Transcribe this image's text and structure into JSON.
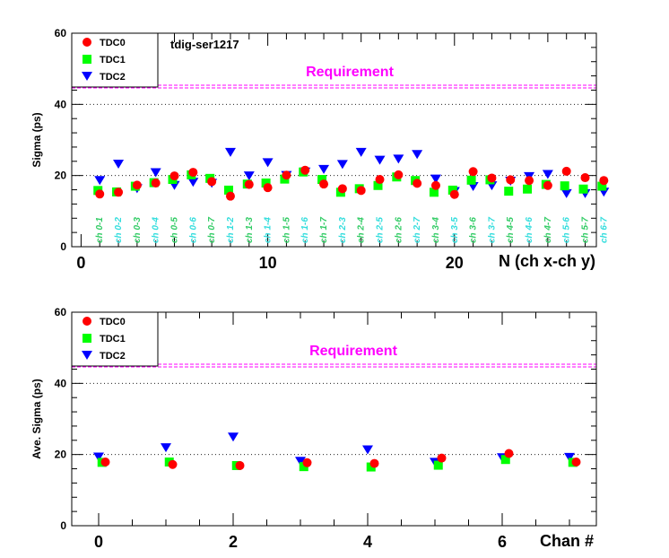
{
  "chart_data": [
    {
      "type": "scatter",
      "annotation": "tdig-ser1217",
      "requirement_label": "Requirement",
      "requirement_value": 45,
      "xlabel": "N (ch x-ch y)",
      "ylabel": "Sigma (ps)",
      "xlim": [
        -0.5,
        27.6
      ],
      "ylim": [
        0,
        60
      ],
      "x_ticks": [
        0,
        10,
        20
      ],
      "y_ticks": [
        0,
        20,
        40,
        60
      ],
      "legend_position": "top-left",
      "grid": "horizontal dotted",
      "x_labels": [
        "ch 0-1",
        "ch 0-2",
        "ch 0-3",
        "ch 0-4",
        "ch 0-5",
        "ch 0-6",
        "ch 0-7",
        "ch 1-2",
        "ch 1-3",
        "ch 1-4",
        "ch 1-5",
        "ch 1-6",
        "ch 1-7",
        "ch 2-3",
        "ch 2-4",
        "ch 2-5",
        "ch 2-6",
        "ch 2-7",
        "ch 3-4",
        "ch 3-5",
        "ch 3-6",
        "ch 3-7",
        "ch 4-5",
        "ch 4-6",
        "ch 4-7",
        "ch 5-6",
        "ch 5-7",
        "ch 6-7"
      ],
      "x": [
        1,
        2,
        3,
        4,
        5,
        6,
        7,
        8,
        9,
        10,
        11,
        12,
        13,
        14,
        15,
        16,
        17,
        18,
        19,
        20,
        21,
        22,
        23,
        24,
        25,
        26,
        27,
        28
      ],
      "series": [
        {
          "name": "TDC0",
          "color": "#ff0000",
          "marker": "circle",
          "values": [
            14.8,
            15.3,
            17.3,
            17.9,
            19.9,
            20.9,
            18.3,
            14.2,
            17.5,
            16.6,
            20.1,
            21.5,
            17.6,
            16.3,
            15.8,
            18.9,
            20.2,
            17.8,
            17.2,
            14.7,
            21.1,
            19.3,
            18.8,
            18.6,
            17.2,
            21.2,
            19.4,
            18.6
          ]
        },
        {
          "name": "TDC1",
          "color": "#00ff00",
          "marker": "square",
          "values": [
            15.8,
            15.4,
            17.0,
            18.0,
            18.9,
            20.2,
            19.2,
            15.9,
            17.6,
            17.9,
            19.0,
            21.0,
            18.9,
            15.3,
            16.3,
            17.2,
            19.6,
            18.6,
            15.3,
            15.9,
            18.7,
            18.8,
            15.6,
            16.2,
            17.5,
            17.1,
            16.2,
            17.0
          ]
        },
        {
          "name": "TDC2",
          "color": "#0000ff",
          "marker": "triangle-down",
          "values": [
            18.6,
            23.2,
            16.3,
            20.8,
            17.2,
            18.1,
            17.8,
            26.5,
            19.9,
            23.6,
            20.0,
            21.0,
            21.7,
            23.1,
            26.5,
            24.3,
            24.6,
            25.9,
            19.0,
            15.5,
            16.9,
            17.1,
            18.4,
            19.7,
            20.3,
            14.9,
            14.9,
            15.3
          ]
        }
      ]
    },
    {
      "type": "scatter",
      "requirement_label": "Requirement",
      "requirement_value": 45,
      "xlabel": "Chan #",
      "ylabel": "Ave. Sigma (ps)",
      "xlim": [
        -0.4,
        7.4
      ],
      "ylim": [
        0,
        60
      ],
      "x_ticks": [
        0,
        2,
        4,
        6
      ],
      "y_ticks": [
        0,
        20,
        40,
        60
      ],
      "legend_position": "top-left",
      "grid": "horizontal dotted",
      "x": [
        0,
        1,
        2,
        3,
        4,
        5,
        6,
        7
      ],
      "series": [
        {
          "name": "TDC0",
          "color": "#ff0000",
          "marker": "circle",
          "x_offset": 0.1,
          "values": [
            17.9,
            17.2,
            16.9,
            17.7,
            17.5,
            19.0,
            20.3,
            17.9
          ]
        },
        {
          "name": "TDC1",
          "color": "#00ff00",
          "marker": "square",
          "x_offset": 0.05,
          "values": [
            17.8,
            17.9,
            16.9,
            16.6,
            16.5,
            17.0,
            18.6,
            17.8
          ]
        },
        {
          "name": "TDC2",
          "color": "#0000ff",
          "marker": "triangle-down",
          "x_offset": 0,
          "values": [
            19.3,
            21.9,
            24.9,
            18.1,
            21.3,
            17.8,
            19.1,
            19.2
          ]
        }
      ]
    }
  ]
}
